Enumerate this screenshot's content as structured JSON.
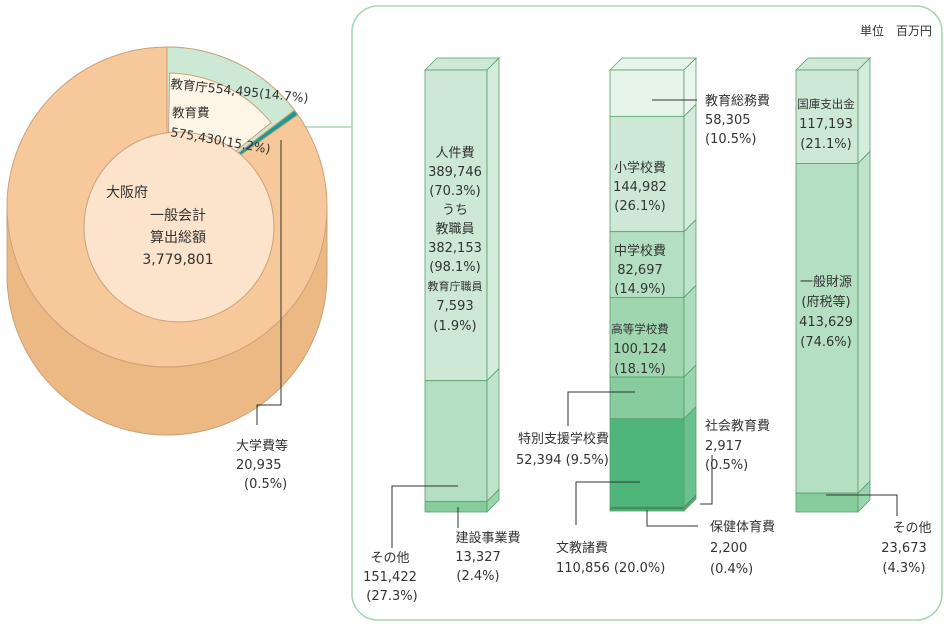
{
  "unit_label": "単位　百万円",
  "colors": {
    "pie_main": "#f7c899",
    "pie_side": "#ecb985",
    "pie_edge": "#c9a27a",
    "inner_circle": "#fbe3cc",
    "agency_slice": "#cde9d6",
    "education_slice": "#fdf5e6",
    "university_slice": "#1e9a93",
    "frame": "#a8d5b3",
    "green_1": "#e6f4ea",
    "green_2": "#cde9d6",
    "green_3": "#b5dfc2",
    "green_4": "#9fd6b0",
    "green_5": "#86cc9d",
    "green_6": "#4fb67a",
    "green_7": "#2f8f55",
    "bar_edge": "#5a9d6b"
  },
  "chart_data": [
    {
      "type": "pie",
      "title": "大阪府 一般会計 算出総額",
      "total_label": "3,779,801",
      "slices": [
        {
          "name": "教育庁",
          "value": 554495,
          "value_label": "554,495",
          "percent_label": "(14.7%)"
        },
        {
          "name": "教育費",
          "value": 575430,
          "value_label": "575,430",
          "percent_label": "(15.2%)"
        },
        {
          "name": "大学費等",
          "value": 20935,
          "value_label": "20,935",
          "percent_label": "(0.5%)"
        }
      ]
    },
    {
      "type": "bar",
      "name": "stacked-bar-personnel",
      "segments": [
        {
          "name": "人件費",
          "value": 389746,
          "value_label": "389,746",
          "percent_label": "(70.3%)",
          "breakdown": [
            {
              "name": "教職員",
              "value_label": "382,153",
              "percent_label": "(98.1%)"
            },
            {
              "name": "教育庁職員",
              "value_label": "7,593",
              "percent_label": "(1.9%)"
            }
          ],
          "breakdown_label": "うち"
        },
        {
          "name": "その他",
          "value": 151422,
          "value_label": "151,422",
          "percent_label": "(27.3%)"
        },
        {
          "name": "建設事業費",
          "value": 13327,
          "value_label": "13,327",
          "percent_label": "(2.4%)"
        }
      ]
    },
    {
      "type": "bar",
      "name": "stacked-bar-purpose",
      "segments": [
        {
          "name": "教育総務費",
          "value": 58305,
          "value_label": "58,305",
          "percent_label": "(10.5%)"
        },
        {
          "name": "小学校費",
          "value": 144982,
          "value_label": "144,982",
          "percent_label": "(26.1%)"
        },
        {
          "name": "中学校費",
          "value": 82697,
          "value_label": "82,697",
          "percent_label": "(14.9%)"
        },
        {
          "name": "高等学校費",
          "value": 100124,
          "value_label": "100,124",
          "percent_label": "(18.1%)"
        },
        {
          "name": "特別支援学校費",
          "value": 52394,
          "value_label": "52,394",
          "percent_label": "(9.5%)"
        },
        {
          "name": "文教諸費",
          "value": 110856,
          "value_label": "110,856",
          "percent_label": "(20.0%)"
        },
        {
          "name": "社会教育費",
          "value": 2917,
          "value_label": "2,917",
          "percent_label": "(0.5%)"
        },
        {
          "name": "保健体育費",
          "value": 2200,
          "value_label": "2,200",
          "percent_label": "(0.4%)"
        }
      ]
    },
    {
      "type": "bar",
      "name": "stacked-bar-revenue",
      "segments": [
        {
          "name": "国庫支出金",
          "value": 117193,
          "value_label": "117,193",
          "percent_label": "(21.1%)"
        },
        {
          "name": "一般財源",
          "name_sub": "(府税等)",
          "value": 413629,
          "value_label": "413,629",
          "percent_label": "(74.6%)"
        },
        {
          "name": "その他",
          "value": 23673,
          "value_label": "23,673",
          "percent_label": "(4.3%)"
        }
      ]
    }
  ]
}
